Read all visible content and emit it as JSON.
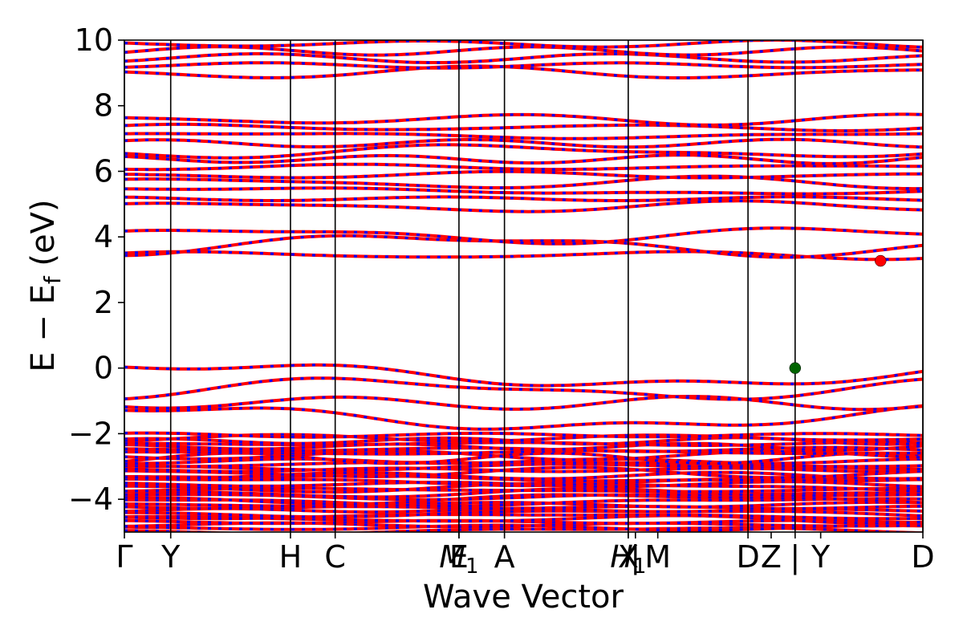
{
  "chart_data": {
    "type": "line",
    "xlabel": "Wave Vector",
    "ylabel": "E − E",
    "ylabel_sub": "f",
    "ylabel_unit": " (eV)",
    "ylim": [
      -5,
      10
    ],
    "yticks": [
      10,
      8,
      6,
      4,
      2,
      0,
      -2,
      -4
    ],
    "ytick_labels": [
      "10",
      "8",
      "6",
      "4",
      "2",
      "0",
      "−2",
      "−4"
    ],
    "xlim": [
      0,
      1
    ],
    "kpoints": [
      {
        "label": "Γ",
        "x": 0.0
      },
      {
        "label": "Y",
        "x": 0.058
      },
      {
        "label": "H",
        "x": 0.208
      },
      {
        "label": "C",
        "x": 0.264
      },
      {
        "label": "E",
        "x": 0.419
      },
      {
        "label": "M",
        "x": 0.419,
        "sub": "1"
      },
      {
        "label": "A",
        "x": 0.476
      },
      {
        "label": "H",
        "x": 0.631,
        "sub": "1"
      },
      {
        "label": "X",
        "x": 0.631
      },
      {
        "label": "|",
        "x": 0.64
      },
      {
        "label": "M",
        "x": 0.668
      },
      {
        "label": "D",
        "x": 0.781
      },
      {
        "label": "Z",
        "x": 0.81
      },
      {
        "label": "|",
        "x": 0.84
      },
      {
        "label": "Y",
        "x": 0.872
      },
      {
        "label": "D",
        "x": 1.0
      }
    ],
    "vlines": [
      0.0,
      0.058,
      0.208,
      0.264,
      0.419,
      0.476,
      0.631,
      0.781,
      0.84,
      1.0
    ],
    "series_colors": {
      "up": "#ff0000",
      "down": "#0000ff"
    },
    "highlight_points": [
      {
        "x": 0.84,
        "y": 0.0,
        "color": "#006400",
        "role": "VBM"
      },
      {
        "x": 0.947,
        "y": 3.27,
        "color": "#ff0000",
        "role": "CBM"
      }
    ],
    "band_groups": {
      "valence_dense": [
        -5.0,
        -2.0
      ],
      "valence_top": [
        -1.7,
        0.0
      ],
      "conduction_low": [
        3.3,
        4.2
      ],
      "conduction_mid": [
        4.8,
        7.7
      ],
      "conduction_high": [
        8.9,
        10.0
      ]
    }
  }
}
